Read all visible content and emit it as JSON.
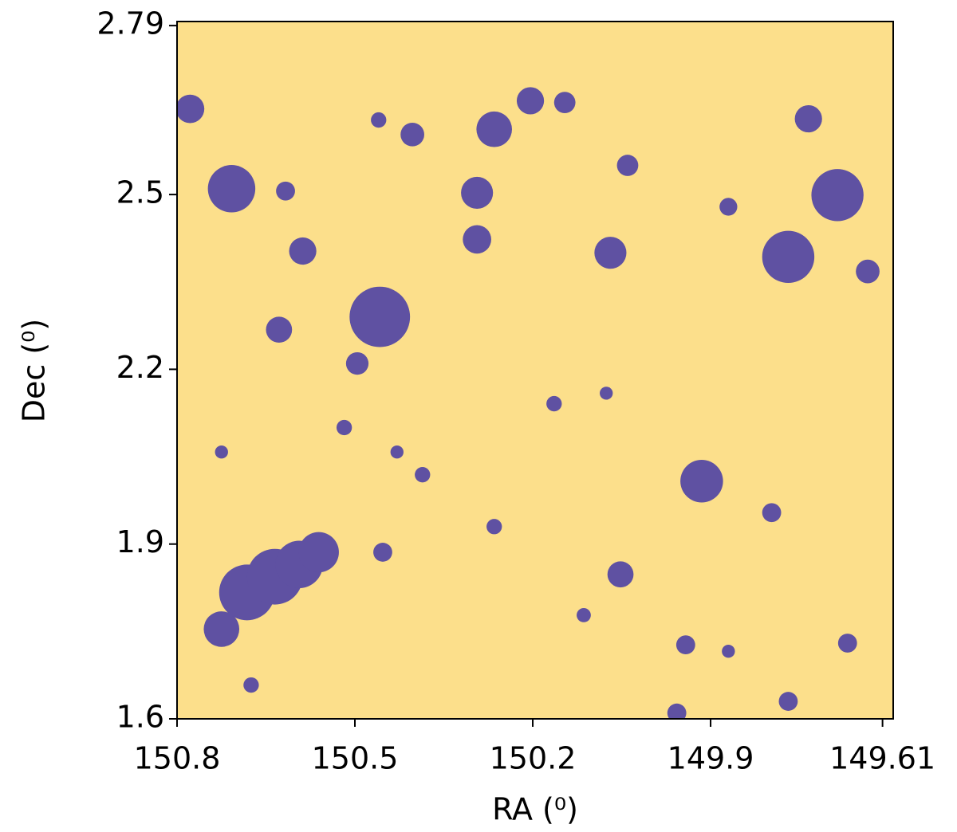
{
  "chart_data": {
    "type": "mask",
    "xlabel": "RA (⁰)",
    "ylabel": "Dec (⁰)",
    "xlim": [
      150.8,
      149.592
    ],
    "ylim": [
      1.6,
      2.797
    ],
    "xticks": [
      150.8,
      150.5,
      150.2,
      149.9,
      149.61
    ],
    "yticks": [
      1.6,
      1.9,
      2.2,
      2.5,
      2.79
    ],
    "background_color": "#fcdf8b",
    "hole_color": "#5f51a2",
    "holes": [
      [
        150.708,
        2.51,
        0.04
      ],
      [
        150.458,
        2.29,
        0.051
      ],
      [
        149.686,
        2.499,
        0.044
      ],
      [
        149.769,
        2.393,
        0.044
      ],
      [
        149.915,
        2.008,
        0.036
      ],
      [
        150.265,
        2.612,
        0.03
      ],
      [
        150.204,
        2.661,
        0.023
      ],
      [
        150.294,
        2.503,
        0.027
      ],
      [
        150.294,
        2.423,
        0.024
      ],
      [
        150.628,
        2.268,
        0.022
      ],
      [
        150.588,
        2.403,
        0.023
      ],
      [
        150.778,
        2.647,
        0.024
      ],
      [
        150.069,
        2.4,
        0.027
      ],
      [
        149.735,
        2.63,
        0.023
      ],
      [
        150.403,
        2.603,
        0.02
      ],
      [
        150.146,
        2.658,
        0.018
      ],
      [
        150.04,
        2.55,
        0.018
      ],
      [
        149.87,
        2.479,
        0.015
      ],
      [
        150.496,
        2.21,
        0.019
      ],
      [
        150.617,
        2.506,
        0.016
      ],
      [
        150.052,
        1.848,
        0.022
      ],
      [
        150.725,
        1.754,
        0.03
      ],
      [
        150.682,
        1.817,
        0.047
      ],
      [
        150.635,
        1.844,
        0.047
      ],
      [
        150.594,
        1.865,
        0.04
      ],
      [
        150.561,
        1.886,
        0.034
      ],
      [
        149.669,
        1.73,
        0.016
      ],
      [
        149.769,
        1.63,
        0.016
      ],
      [
        150.453,
        1.886,
        0.016
      ],
      [
        150.386,
        2.019,
        0.013
      ],
      [
        150.164,
        2.141,
        0.013
      ],
      [
        150.265,
        1.93,
        0.013
      ],
      [
        150.46,
        2.628,
        0.013
      ],
      [
        150.518,
        2.1,
        0.013
      ],
      [
        149.635,
        2.368,
        0.02
      ],
      [
        149.942,
        1.727,
        0.016
      ],
      [
        149.797,
        1.954,
        0.016
      ],
      [
        150.114,
        1.778,
        0.012
      ],
      [
        150.725,
        2.058,
        0.011
      ],
      [
        150.429,
        2.058,
        0.011
      ],
      [
        149.87,
        1.716,
        0.011
      ],
      [
        149.957,
        1.61,
        0.016
      ],
      [
        150.675,
        1.658,
        0.013
      ],
      [
        150.076,
        2.159,
        0.011
      ]
    ]
  }
}
